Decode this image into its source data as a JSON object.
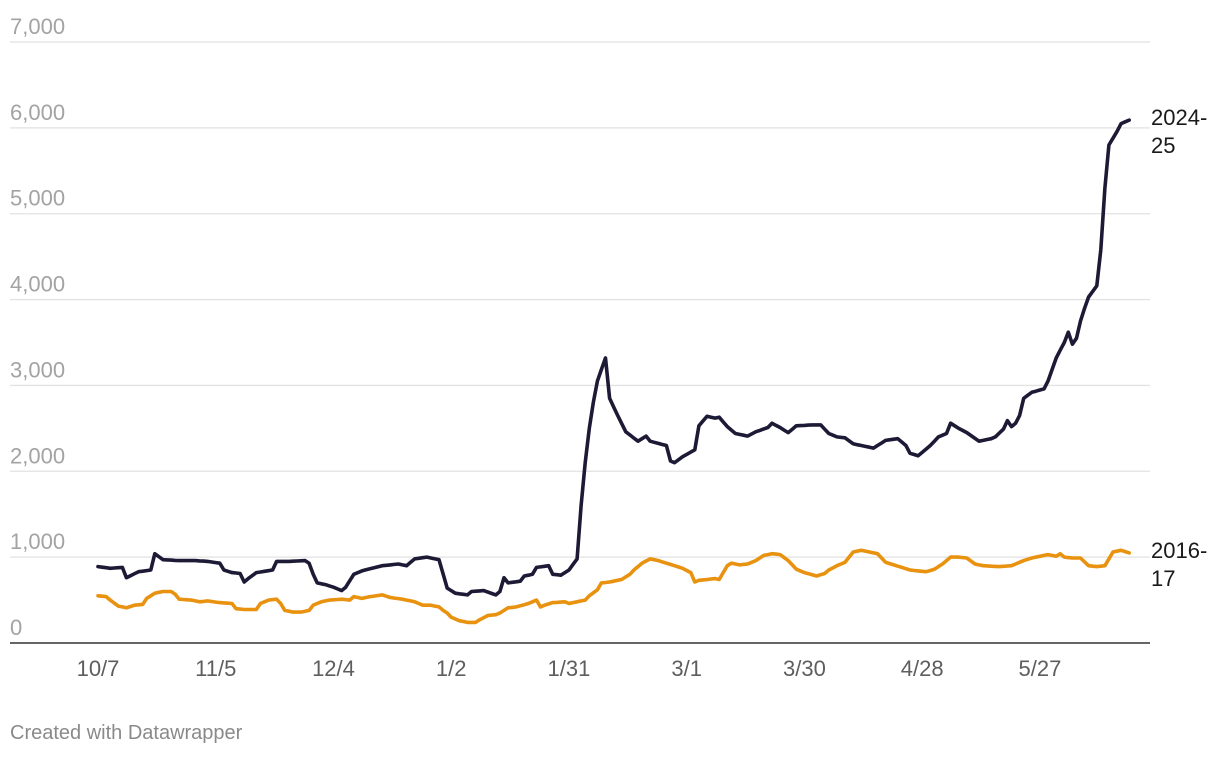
{
  "chart_data": {
    "type": "line",
    "x_axis": {
      "ticks": [
        "10/7",
        "11/5",
        "12/4",
        "1/2",
        "1/31",
        "3/1",
        "3/30",
        "4/28",
        "5/27"
      ],
      "tick_spacing_points": 29,
      "points_per_series": 255
    },
    "y_axis": {
      "ylim": [
        0,
        7000
      ],
      "ticks": [
        0,
        1000,
        2000,
        3000,
        4000,
        5000,
        6000,
        7000
      ],
      "tick_labels": [
        "0",
        "1,000",
        "2,000",
        "3,000",
        "4,000",
        "5,000",
        "6,000",
        "7,000"
      ]
    },
    "grid": "horizontal",
    "series": [
      {
        "name": "2024-25",
        "label_lines": [
          "2024-",
          "25"
        ],
        "color": "#1d1a36",
        "keypoints": [
          [
            0,
            890
          ],
          [
            3,
            870
          ],
          [
            6,
            880
          ],
          [
            7,
            760
          ],
          [
            10,
            830
          ],
          [
            13,
            850
          ],
          [
            14,
            1040
          ],
          [
            16,
            970
          ],
          [
            20,
            960
          ],
          [
            24,
            960
          ],
          [
            27,
            950
          ],
          [
            30,
            930
          ],
          [
            31,
            850
          ],
          [
            33,
            820
          ],
          [
            35,
            810
          ],
          [
            36,
            710
          ],
          [
            37,
            750
          ],
          [
            39,
            820
          ],
          [
            43,
            850
          ],
          [
            44,
            950
          ],
          [
            47,
            950
          ],
          [
            51,
            960
          ],
          [
            52,
            930
          ],
          [
            53,
            800
          ],
          [
            54,
            700
          ],
          [
            56,
            680
          ],
          [
            58,
            650
          ],
          [
            60,
            610
          ],
          [
            61,
            650
          ],
          [
            63,
            800
          ],
          [
            65,
            840
          ],
          [
            70,
            900
          ],
          [
            74,
            920
          ],
          [
            76,
            900
          ],
          [
            78,
            980
          ],
          [
            81,
            1000
          ],
          [
            84,
            970
          ],
          [
            86,
            640
          ],
          [
            88,
            580
          ],
          [
            91,
            560
          ],
          [
            92,
            600
          ],
          [
            95,
            610
          ],
          [
            98,
            560
          ],
          [
            99,
            600
          ],
          [
            100,
            760
          ],
          [
            101,
            700
          ],
          [
            104,
            720
          ],
          [
            105,
            780
          ],
          [
            107,
            800
          ],
          [
            108,
            880
          ],
          [
            111,
            900
          ],
          [
            112,
            800
          ],
          [
            114,
            790
          ],
          [
            116,
            850
          ],
          [
            118,
            980
          ],
          [
            119,
            1600
          ],
          [
            120,
            2100
          ],
          [
            121,
            2500
          ],
          [
            122,
            2800
          ],
          [
            123,
            3050
          ],
          [
            125,
            3320
          ],
          [
            126,
            2850
          ],
          [
            128,
            2650
          ],
          [
            130,
            2460
          ],
          [
            133,
            2350
          ],
          [
            135,
            2410
          ],
          [
            136,
            2350
          ],
          [
            140,
            2300
          ],
          [
            141,
            2120
          ],
          [
            142,
            2100
          ],
          [
            144,
            2170
          ],
          [
            147,
            2250
          ],
          [
            148,
            2530
          ],
          [
            150,
            2640
          ],
          [
            152,
            2620
          ],
          [
            153,
            2630
          ],
          [
            155,
            2520
          ],
          [
            157,
            2440
          ],
          [
            160,
            2410
          ],
          [
            162,
            2460
          ],
          [
            165,
            2510
          ],
          [
            166,
            2560
          ],
          [
            168,
            2510
          ],
          [
            170,
            2450
          ],
          [
            172,
            2530
          ],
          [
            176,
            2540
          ],
          [
            178,
            2540
          ],
          [
            180,
            2440
          ],
          [
            182,
            2400
          ],
          [
            184,
            2390
          ],
          [
            186,
            2320
          ],
          [
            188,
            2300
          ],
          [
            191,
            2270
          ],
          [
            194,
            2360
          ],
          [
            197,
            2380
          ],
          [
            199,
            2300
          ],
          [
            200,
            2210
          ],
          [
            202,
            2180
          ],
          [
            205,
            2300
          ],
          [
            207,
            2400
          ],
          [
            209,
            2440
          ],
          [
            210,
            2560
          ],
          [
            212,
            2500
          ],
          [
            214,
            2450
          ],
          [
            217,
            2350
          ],
          [
            220,
            2380
          ],
          [
            221,
            2400
          ],
          [
            223,
            2490
          ],
          [
            224,
            2590
          ],
          [
            225,
            2520
          ],
          [
            226,
            2560
          ],
          [
            227,
            2650
          ],
          [
            228,
            2850
          ],
          [
            230,
            2920
          ],
          [
            233,
            2960
          ],
          [
            234,
            3050
          ],
          [
            236,
            3320
          ],
          [
            238,
            3500
          ],
          [
            239,
            3620
          ],
          [
            240,
            3480
          ],
          [
            241,
            3550
          ],
          [
            242,
            3750
          ],
          [
            243,
            3900
          ],
          [
            244,
            4030
          ],
          [
            246,
            4160
          ],
          [
            247,
            4580
          ],
          [
            248,
            5300
          ],
          [
            249,
            5800
          ],
          [
            251,
            5960
          ],
          [
            252,
            6050
          ],
          [
            254,
            6090
          ]
        ]
      },
      {
        "name": "2016-17",
        "label_lines": [
          "2016-",
          "17"
        ],
        "color": "#e8920f",
        "keypoints": [
          [
            0,
            550
          ],
          [
            2,
            540
          ],
          [
            3,
            500
          ],
          [
            5,
            430
          ],
          [
            7,
            410
          ],
          [
            9,
            440
          ],
          [
            11,
            450
          ],
          [
            12,
            520
          ],
          [
            14,
            580
          ],
          [
            16,
            600
          ],
          [
            18,
            600
          ],
          [
            19,
            570
          ],
          [
            20,
            510
          ],
          [
            23,
            500
          ],
          [
            25,
            480
          ],
          [
            27,
            490
          ],
          [
            30,
            470
          ],
          [
            33,
            460
          ],
          [
            34,
            400
          ],
          [
            36,
            390
          ],
          [
            39,
            390
          ],
          [
            40,
            460
          ],
          [
            42,
            500
          ],
          [
            44,
            510
          ],
          [
            45,
            460
          ],
          [
            46,
            380
          ],
          [
            48,
            360
          ],
          [
            50,
            360
          ],
          [
            52,
            380
          ],
          [
            53,
            440
          ],
          [
            55,
            480
          ],
          [
            57,
            500
          ],
          [
            60,
            510
          ],
          [
            62,
            500
          ],
          [
            63,
            540
          ],
          [
            65,
            520
          ],
          [
            67,
            540
          ],
          [
            70,
            560
          ],
          [
            72,
            530
          ],
          [
            75,
            510
          ],
          [
            78,
            480
          ],
          [
            80,
            440
          ],
          [
            82,
            440
          ],
          [
            84,
            420
          ],
          [
            85,
            380
          ],
          [
            86,
            350
          ],
          [
            87,
            300
          ],
          [
            89,
            260
          ],
          [
            91,
            240
          ],
          [
            93,
            240
          ],
          [
            94,
            270
          ],
          [
            96,
            320
          ],
          [
            98,
            330
          ],
          [
            99,
            350
          ],
          [
            101,
            410
          ],
          [
            103,
            420
          ],
          [
            106,
            460
          ],
          [
            108,
            500
          ],
          [
            109,
            420
          ],
          [
            110,
            440
          ],
          [
            112,
            470
          ],
          [
            115,
            480
          ],
          [
            116,
            460
          ],
          [
            118,
            480
          ],
          [
            120,
            500
          ],
          [
            121,
            550
          ],
          [
            123,
            620
          ],
          [
            124,
            700
          ],
          [
            126,
            710
          ],
          [
            129,
            740
          ],
          [
            131,
            800
          ],
          [
            132,
            850
          ],
          [
            134,
            930
          ],
          [
            136,
            980
          ],
          [
            138,
            960
          ],
          [
            140,
            930
          ],
          [
            142,
            900
          ],
          [
            144,
            870
          ],
          [
            146,
            820
          ],
          [
            147,
            710
          ],
          [
            148,
            730
          ],
          [
            152,
            750
          ],
          [
            153,
            740
          ],
          [
            155,
            900
          ],
          [
            156,
            930
          ],
          [
            158,
            910
          ],
          [
            160,
            920
          ],
          [
            162,
            960
          ],
          [
            164,
            1020
          ],
          [
            166,
            1040
          ],
          [
            168,
            1030
          ],
          [
            170,
            960
          ],
          [
            172,
            860
          ],
          [
            174,
            820
          ],
          [
            177,
            780
          ],
          [
            179,
            810
          ],
          [
            180,
            850
          ],
          [
            182,
            900
          ],
          [
            184,
            940
          ],
          [
            185,
            1000
          ],
          [
            186,
            1060
          ],
          [
            188,
            1080
          ],
          [
            190,
            1060
          ],
          [
            192,
            1040
          ],
          [
            194,
            940
          ],
          [
            196,
            910
          ],
          [
            198,
            880
          ],
          [
            200,
            850
          ],
          [
            202,
            840
          ],
          [
            204,
            830
          ],
          [
            206,
            860
          ],
          [
            208,
            920
          ],
          [
            210,
            1000
          ],
          [
            212,
            1000
          ],
          [
            214,
            990
          ],
          [
            216,
            920
          ],
          [
            218,
            900
          ],
          [
            222,
            890
          ],
          [
            225,
            900
          ],
          [
            228,
            960
          ],
          [
            230,
            990
          ],
          [
            232,
            1010
          ],
          [
            234,
            1030
          ],
          [
            236,
            1010
          ],
          [
            237,
            1040
          ],
          [
            238,
            1000
          ],
          [
            240,
            990
          ],
          [
            242,
            990
          ],
          [
            244,
            900
          ],
          [
            246,
            890
          ],
          [
            248,
            900
          ],
          [
            250,
            1060
          ],
          [
            252,
            1080
          ],
          [
            254,
            1050
          ]
        ]
      }
    ]
  },
  "footer": {
    "credit": "Created with Datawrapper"
  }
}
